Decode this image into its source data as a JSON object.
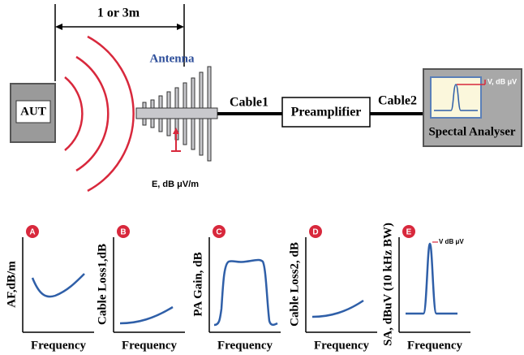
{
  "top": {
    "distance": "1 or 3m",
    "antenna": "Antenna",
    "aut": "AUT",
    "cable1": "Cable1",
    "preamplifier": "Preamplifier",
    "cable2": "Cable2",
    "analyser": "Spectal Analyser",
    "screen_label": "V, dB μV",
    "field_label": "E, dB μV/m"
  },
  "panels": [
    {
      "letter": "A",
      "ylabel": "AF,dB/m",
      "xlabel": "Frequency"
    },
    {
      "letter": "B",
      "ylabel": "Cable Loss1,dB",
      "xlabel": "Frequency"
    },
    {
      "letter": "C",
      "ylabel": "PA Gain, dB",
      "xlabel": "Frequency"
    },
    {
      "letter": "D",
      "ylabel": "Cable Loss2, dB",
      "xlabel": "Frequency"
    },
    {
      "letter": "E",
      "ylabel": "SA, dBuV (10 kHz BW)",
      "xlabel": "Frequency",
      "annotation": "V dB μV"
    }
  ]
}
